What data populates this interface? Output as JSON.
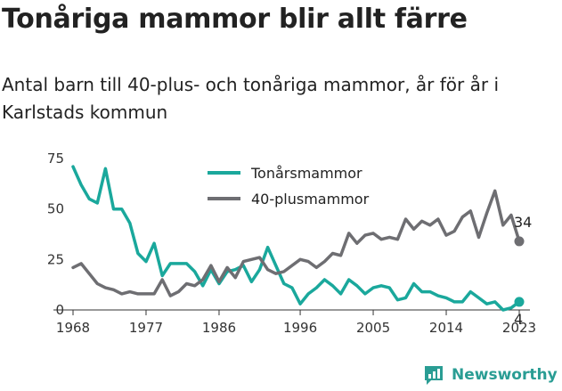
{
  "header": {
    "title": "Tonåriga mammor blir allt färre",
    "subtitle": "Antal barn till 40-plus- och tonåriga mammor, år för år i Karlstads kommun"
  },
  "brand": {
    "name": "Newsworthy",
    "icon": "newsworthy-logo-icon",
    "color": "#2a9d94"
  },
  "chart_data": {
    "type": "line",
    "title": "Tonåriga mammor blir allt färre",
    "subtitle": "Antal barn till 40-plus- och tonåriga mammor, år för år i Karlstads kommun",
    "xlabel": "",
    "ylabel": "",
    "x_ticks": [
      "1968",
      "1977",
      "1986",
      "1996",
      "2005",
      "2014",
      "2023"
    ],
    "y_ticks": [
      "0",
      "25",
      "50",
      "75"
    ],
    "ylim": [
      0,
      75
    ],
    "xlim": [
      1968,
      2023
    ],
    "grid": false,
    "legend_position": "top-center",
    "x": [
      1968,
      1969,
      1970,
      1971,
      1972,
      1973,
      1974,
      1975,
      1976,
      1977,
      1978,
      1979,
      1980,
      1981,
      1982,
      1983,
      1984,
      1985,
      1986,
      1987,
      1988,
      1989,
      1990,
      1991,
      1992,
      1993,
      1994,
      1995,
      1996,
      1997,
      1998,
      1999,
      2000,
      2001,
      2002,
      2003,
      2004,
      2005,
      2006,
      2007,
      2008,
      2009,
      2010,
      2011,
      2012,
      2013,
      2014,
      2015,
      2016,
      2017,
      2018,
      2019,
      2020,
      2021,
      2022,
      2023
    ],
    "series": [
      {
        "name": "Tonårsmammor",
        "color": "#1aa89c",
        "values": [
          71,
          62,
          55,
          53,
          70,
          50,
          50,
          43,
          28,
          24,
          33,
          17,
          23,
          23,
          23,
          19,
          12,
          20,
          13,
          19,
          20,
          22,
          14,
          20,
          31,
          22,
          13,
          11,
          3,
          8,
          11,
          15,
          12,
          8,
          15,
          12,
          8,
          11,
          12,
          11,
          5,
          6,
          13,
          9,
          9,
          7,
          6,
          4,
          4,
          9,
          6,
          3,
          4,
          0,
          1,
          4
        ],
        "end_label": "4"
      },
      {
        "name": "40-plusmammor",
        "color": "#6e6e72",
        "values": [
          21,
          23,
          18,
          13,
          11,
          10,
          8,
          9,
          8,
          8,
          8,
          15,
          7,
          9,
          13,
          12,
          15,
          22,
          14,
          21,
          16,
          24,
          25,
          26,
          20,
          18,
          19,
          22,
          25,
          24,
          21,
          24,
          28,
          27,
          38,
          33,
          37,
          38,
          35,
          36,
          35,
          45,
          40,
          44,
          42,
          45,
          37,
          39,
          46,
          49,
          36,
          48,
          59,
          42,
          47,
          34
        ],
        "end_label": "34"
      }
    ]
  }
}
